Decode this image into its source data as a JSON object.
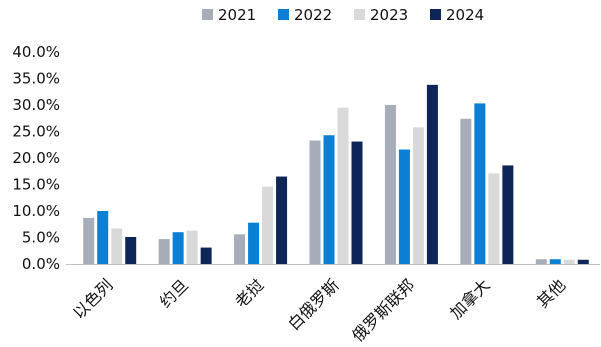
{
  "chart_data": {
    "type": "bar",
    "categories": [
      "以色列",
      "约旦",
      "老挝",
      "白俄罗斯",
      "俄罗斯联邦",
      "加拿大",
      "其他"
    ],
    "series": [
      {
        "name": "2021",
        "color": "#a6adb8",
        "values": [
          8.7,
          4.7,
          5.6,
          23.3,
          30.0,
          27.4,
          0.9
        ]
      },
      {
        "name": "2022",
        "color": "#0b7fd4",
        "values": [
          10.0,
          6.0,
          7.8,
          24.3,
          21.6,
          30.3,
          0.9
        ]
      },
      {
        "name": "2023",
        "color": "#d9d9d9",
        "values": [
          6.7,
          6.3,
          14.6,
          29.5,
          25.8,
          17.1,
          0.8
        ]
      },
      {
        "name": "2024",
        "color": "#0d2657",
        "values": [
          5.1,
          3.1,
          16.5,
          23.1,
          33.8,
          18.6,
          0.8
        ]
      }
    ],
    "y_ticks": [
      "0.0%",
      "5.0%",
      "10.0%",
      "15.0%",
      "20.0%",
      "25.0%",
      "30.0%",
      "35.0%",
      "40.0%"
    ],
    "ylim": [
      0,
      40
    ],
    "legend_position": "top-center",
    "grid": false
  }
}
